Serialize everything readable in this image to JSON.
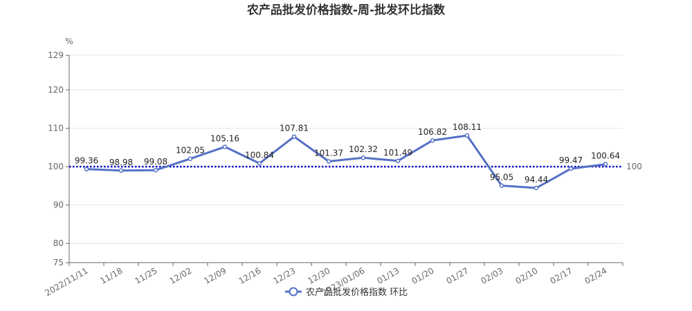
{
  "chart_data": {
    "type": "line",
    "title": "农产品批发价格指数-周-批发环比指数",
    "ylabel": "%",
    "ylim": [
      75,
      129
    ],
    "yticks": [
      75,
      80,
      90,
      100,
      110,
      120,
      129
    ],
    "grid": true,
    "legend_position": "bottom",
    "categories": [
      "2022/11/11",
      "11/18",
      "11/25",
      "12/02",
      "12/09",
      "12/16",
      "12/23",
      "12/30",
      "2023/01/06",
      "01/13",
      "01/20",
      "01/27",
      "02/03",
      "02/10",
      "02/17",
      "02/24"
    ],
    "series": [
      {
        "name": "农产品批发价格指数  环比",
        "values": [
          99.36,
          98.98,
          99.08,
          102.05,
          105.16,
          100.84,
          107.81,
          101.37,
          102.32,
          101.49,
          106.82,
          108.11,
          95.05,
          94.44,
          99.47,
          100.64
        ],
        "color": "#5470c6"
      }
    ],
    "reference_line": {
      "value": 100,
      "label": "100",
      "color": "#0000cc"
    }
  }
}
